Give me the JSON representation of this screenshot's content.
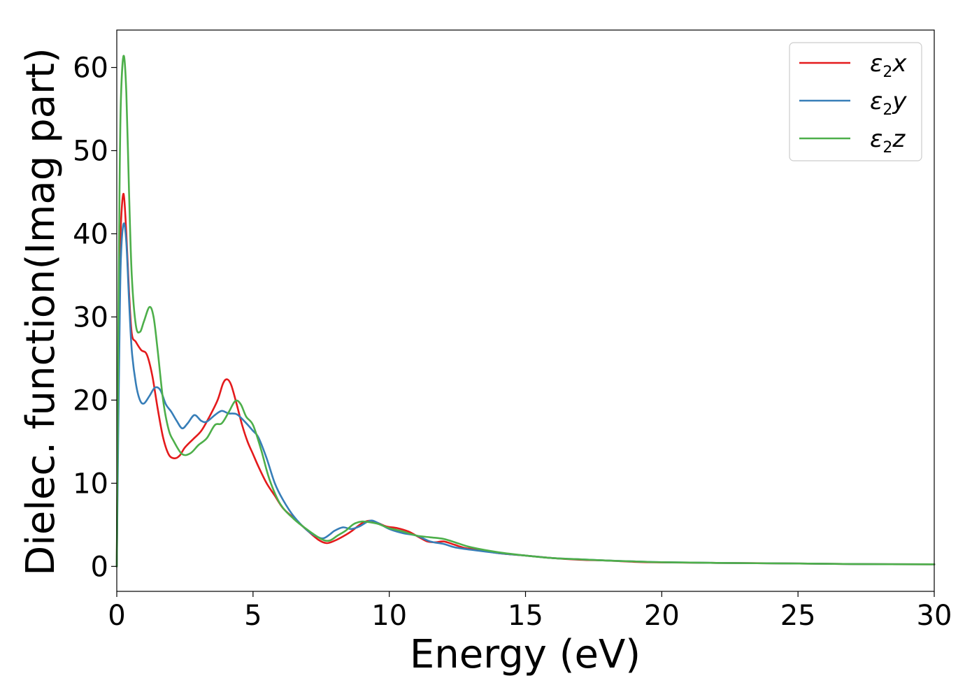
{
  "chart_data": {
    "type": "line",
    "title": "",
    "xlabel": "Energy (eV)",
    "ylabel": "Dielec. function(Imag part)",
    "xlim": [
      0,
      30
    ],
    "ylim": [
      -3,
      64.5
    ],
    "xticks": [
      0,
      5,
      10,
      15,
      20,
      25,
      30
    ],
    "yticks": [
      0,
      10,
      20,
      30,
      40,
      50,
      60
    ],
    "grid": false,
    "legend_position": "top-right",
    "series": [
      {
        "name": "ε2x",
        "label_base": "ε",
        "label_sub": "2",
        "label_tail": "x",
        "color": "#e41a1c",
        "points": [
          [
            0,
            0
          ],
          [
            0.05,
            20
          ],
          [
            0.1,
            33
          ],
          [
            0.15,
            41
          ],
          [
            0.25,
            44.8
          ],
          [
            0.35,
            40
          ],
          [
            0.45,
            33
          ],
          [
            0.55,
            28
          ],
          [
            0.7,
            27
          ],
          [
            0.9,
            26
          ],
          [
            1.1,
            25.5
          ],
          [
            1.3,
            23
          ],
          [
            1.5,
            19
          ],
          [
            1.7,
            15.5
          ],
          [
            1.9,
            13.5
          ],
          [
            2.1,
            13
          ],
          [
            2.3,
            13.3
          ],
          [
            2.5,
            14.3
          ],
          [
            2.8,
            15.3
          ],
          [
            3.1,
            16.3
          ],
          [
            3.4,
            18
          ],
          [
            3.7,
            20
          ],
          [
            3.9,
            22
          ],
          [
            4.05,
            22.5
          ],
          [
            4.2,
            21.8
          ],
          [
            4.4,
            19.5
          ],
          [
            4.6,
            17
          ],
          [
            4.8,
            15
          ],
          [
            5.0,
            13.5
          ],
          [
            5.2,
            12
          ],
          [
            5.5,
            10
          ],
          [
            5.8,
            8.5
          ],
          [
            6.1,
            7
          ],
          [
            6.5,
            5.8
          ],
          [
            7.0,
            4.3
          ],
          [
            7.4,
            3.2
          ],
          [
            7.7,
            2.8
          ],
          [
            8.0,
            3.1
          ],
          [
            8.3,
            3.6
          ],
          [
            8.6,
            4.2
          ],
          [
            9.0,
            5.2
          ],
          [
            9.3,
            5.5
          ],
          [
            9.6,
            5.2
          ],
          [
            9.9,
            4.8
          ],
          [
            10.3,
            4.6
          ],
          [
            10.7,
            4.2
          ],
          [
            11.1,
            3.5
          ],
          [
            11.4,
            3.0
          ],
          [
            11.7,
            2.9
          ],
          [
            12.0,
            3.0
          ],
          [
            12.4,
            2.6
          ],
          [
            12.8,
            2.2
          ],
          [
            13.3,
            2.0
          ],
          [
            14,
            1.6
          ],
          [
            15,
            1.3
          ],
          [
            16,
            1.0
          ],
          [
            17,
            0.8
          ],
          [
            18,
            0.7
          ],
          [
            19,
            0.55
          ],
          [
            20,
            0.48
          ],
          [
            22,
            0.42
          ],
          [
            25,
            0.35
          ],
          [
            27,
            0.28
          ],
          [
            30,
            0.25
          ]
        ]
      },
      {
        "name": "ε2y",
        "label_base": "ε",
        "label_sub": "2",
        "label_tail": "y",
        "color": "#377eb8",
        "points": [
          [
            0,
            0
          ],
          [
            0.05,
            15
          ],
          [
            0.1,
            28
          ],
          [
            0.15,
            37
          ],
          [
            0.25,
            41.2
          ],
          [
            0.35,
            39
          ],
          [
            0.45,
            32
          ],
          [
            0.55,
            26
          ],
          [
            0.7,
            22
          ],
          [
            0.85,
            20
          ],
          [
            1.0,
            19.6
          ],
          [
            1.2,
            20.5
          ],
          [
            1.4,
            21.5
          ],
          [
            1.6,
            21.2
          ],
          [
            1.8,
            19.5
          ],
          [
            2.0,
            18.6
          ],
          [
            2.2,
            17.5
          ],
          [
            2.4,
            16.6
          ],
          [
            2.6,
            17.2
          ],
          [
            2.85,
            18.2
          ],
          [
            3.1,
            17.5
          ],
          [
            3.3,
            17.4
          ],
          [
            3.6,
            18.2
          ],
          [
            3.85,
            18.7
          ],
          [
            4.1,
            18.4
          ],
          [
            4.4,
            18.3
          ],
          [
            4.7,
            17.4
          ],
          [
            5.0,
            16.3
          ],
          [
            5.2,
            15.5
          ],
          [
            5.5,
            13
          ],
          [
            5.8,
            10
          ],
          [
            6.1,
            8
          ],
          [
            6.5,
            6.0
          ],
          [
            7.0,
            4.3
          ],
          [
            7.4,
            3.5
          ],
          [
            7.6,
            3.4
          ],
          [
            7.8,
            3.8
          ],
          [
            8.0,
            4.3
          ],
          [
            8.3,
            4.7
          ],
          [
            8.6,
            4.5
          ],
          [
            8.9,
            4.8
          ],
          [
            9.3,
            5.5
          ],
          [
            9.6,
            5.2
          ],
          [
            10.0,
            4.5
          ],
          [
            10.5,
            4.0
          ],
          [
            11.0,
            3.7
          ],
          [
            11.5,
            3.0
          ],
          [
            12.0,
            2.7
          ],
          [
            12.4,
            2.3
          ],
          [
            13.0,
            2.0
          ],
          [
            14,
            1.6
          ],
          [
            15,
            1.3
          ],
          [
            16,
            1.0
          ],
          [
            17,
            0.85
          ],
          [
            18,
            0.7
          ],
          [
            19,
            0.6
          ],
          [
            20,
            0.5
          ],
          [
            22,
            0.42
          ],
          [
            25,
            0.35
          ],
          [
            27,
            0.28
          ],
          [
            30,
            0.25
          ]
        ]
      },
      {
        "name": "ε2z",
        "label_base": "ε",
        "label_sub": "2",
        "label_tail": "z",
        "color": "#4daf4a",
        "points": [
          [
            0,
            0
          ],
          [
            0.05,
            25
          ],
          [
            0.1,
            45
          ],
          [
            0.15,
            56
          ],
          [
            0.25,
            61.4
          ],
          [
            0.35,
            57
          ],
          [
            0.45,
            45
          ],
          [
            0.55,
            35
          ],
          [
            0.7,
            29
          ],
          [
            0.85,
            28.2
          ],
          [
            1.0,
            29.5
          ],
          [
            1.2,
            31.2
          ],
          [
            1.35,
            30
          ],
          [
            1.5,
            26
          ],
          [
            1.7,
            20
          ],
          [
            1.9,
            16.5
          ],
          [
            2.1,
            15
          ],
          [
            2.4,
            13.5
          ],
          [
            2.7,
            13.6
          ],
          [
            3.0,
            14.6
          ],
          [
            3.3,
            15.4
          ],
          [
            3.6,
            17
          ],
          [
            3.85,
            17.2
          ],
          [
            4.1,
            18.5
          ],
          [
            4.35,
            19.9
          ],
          [
            4.55,
            19.5
          ],
          [
            4.75,
            18
          ],
          [
            5.0,
            17
          ],
          [
            5.3,
            14
          ],
          [
            5.6,
            10.5
          ],
          [
            6.0,
            7.5
          ],
          [
            6.5,
            5.7
          ],
          [
            7.0,
            4.4
          ],
          [
            7.5,
            3.3
          ],
          [
            7.8,
            3.1
          ],
          [
            8.1,
            3.7
          ],
          [
            8.4,
            4.3
          ],
          [
            8.7,
            5.1
          ],
          [
            9.0,
            5.4
          ],
          [
            9.3,
            5.3
          ],
          [
            9.6,
            5.1
          ],
          [
            10.0,
            4.6
          ],
          [
            10.5,
            4.2
          ],
          [
            11.0,
            3.7
          ],
          [
            11.5,
            3.5
          ],
          [
            12.0,
            3.3
          ],
          [
            12.5,
            2.8
          ],
          [
            13.0,
            2.3
          ],
          [
            14,
            1.7
          ],
          [
            15,
            1.3
          ],
          [
            16,
            1.0
          ],
          [
            17,
            0.85
          ],
          [
            18,
            0.7
          ],
          [
            19,
            0.6
          ],
          [
            20,
            0.5
          ],
          [
            22,
            0.42
          ],
          [
            25,
            0.35
          ],
          [
            27,
            0.28
          ],
          [
            30,
            0.25
          ]
        ]
      }
    ]
  }
}
